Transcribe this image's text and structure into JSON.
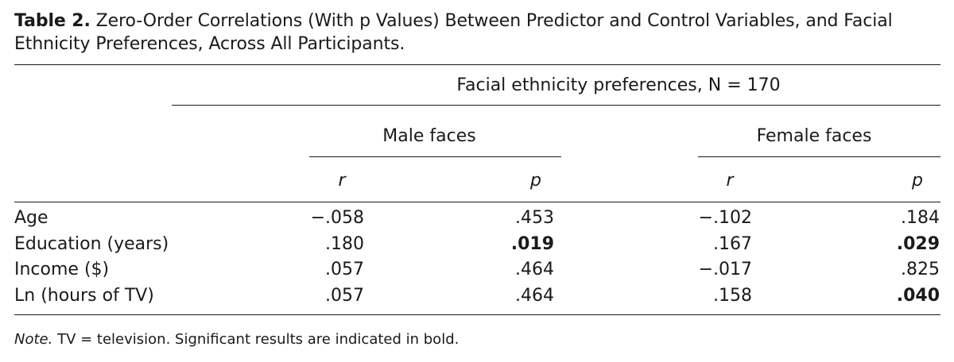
{
  "caption": {
    "label": "Table 2.",
    "text": "Zero-Order Correlations (With p Values) Between Predictor and Control Variables, and Facial Ethnicity Preferences, Across All Participants."
  },
  "table": {
    "spanner": "Facial ethnicity preferences, N = 170",
    "groups": [
      "Male faces",
      "Female faces"
    ],
    "subheaders": [
      "r",
      "p",
      "r",
      "p"
    ],
    "rows": [
      {
        "label": "Age",
        "cells": [
          {
            "value": "−.058",
            "bold": false
          },
          {
            "value": ".453",
            "bold": false
          },
          {
            "value": "−.102",
            "bold": false
          },
          {
            "value": ".184",
            "bold": false
          }
        ]
      },
      {
        "label": "Education (years)",
        "cells": [
          {
            "value": ".180",
            "bold": false
          },
          {
            "value": ".019",
            "bold": true
          },
          {
            "value": ".167",
            "bold": false
          },
          {
            "value": ".029",
            "bold": true
          }
        ]
      },
      {
        "label": "Income ($)",
        "cells": [
          {
            "value": ".057",
            "bold": false
          },
          {
            "value": ".464",
            "bold": false
          },
          {
            "value": "−.017",
            "bold": false
          },
          {
            "value": ".825",
            "bold": false
          }
        ]
      },
      {
        "label": "Ln (hours of TV)",
        "cells": [
          {
            "value": ".057",
            "bold": false
          },
          {
            "value": ".464",
            "bold": false
          },
          {
            "value": ".158",
            "bold": false
          },
          {
            "value": ".040",
            "bold": true
          }
        ]
      }
    ]
  },
  "note": {
    "label": "Note.",
    "text": "TV = television. Significant results are indicated in bold."
  }
}
